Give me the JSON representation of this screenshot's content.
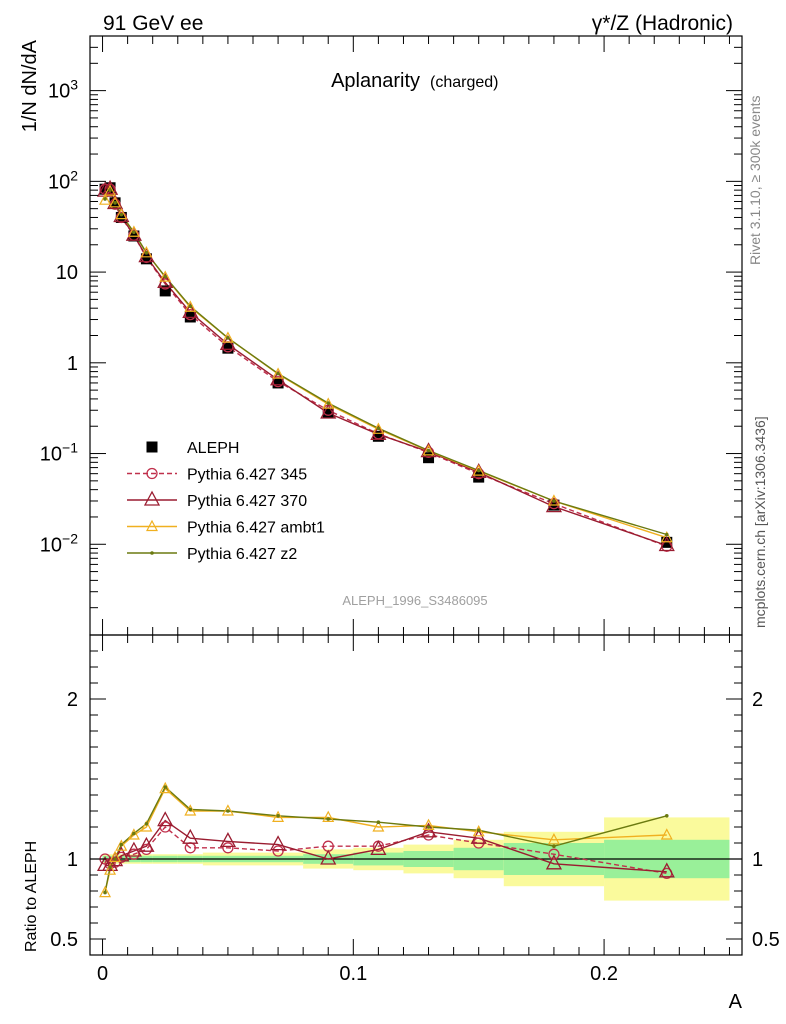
{
  "header": {
    "left": "91 GeV ee",
    "right": "γ*/Z (Hadronic)"
  },
  "side_labels": {
    "rivet": "Rivet 3.1.10, ≥ 300k events",
    "mcplots": "mcplots.cern.ch [arXiv:1306.3436]"
  },
  "watermark": "ALEPH_1996_S3486095",
  "colors": {
    "data": "#000000",
    "p345": "#c0304c",
    "p370": "#9a1c30",
    "ambt1": "#f0b020",
    "z2": "#6b7a10",
    "band_inner": "#99f099",
    "band_outer": "#fafa9c"
  },
  "chart_data": [
    {
      "type": "line",
      "title": "Aplanarity",
      "title_suffix": "(charged)",
      "ylabel": "1/N dN/dA",
      "yscale": "log",
      "ylim": [
        0.001,
        4000
      ],
      "xlim": [
        -0.005,
        0.255
      ],
      "yticks": [
        {
          "v": 0.01,
          "base": "10",
          "exp": "−2"
        },
        {
          "v": 0.1,
          "base": "10",
          "exp": "−1"
        },
        {
          "v": 1,
          "base": "1",
          "exp": ""
        },
        {
          "v": 10,
          "base": "10",
          "exp": ""
        },
        {
          "v": 100,
          "base": "10",
          "exp": "2"
        },
        {
          "v": 1000,
          "base": "10",
          "exp": "3"
        }
      ],
      "x": [
        0.001,
        0.003,
        0.005,
        0.0075,
        0.0125,
        0.0175,
        0.025,
        0.035,
        0.05,
        0.07,
        0.09,
        0.11,
        0.13,
        0.15,
        0.18,
        0.225
      ],
      "series": [
        {
          "name": "ALEPH",
          "key": "data",
          "style": "square",
          "values": [
            82,
            85,
            58,
            40,
            25,
            14,
            6.2,
            3.2,
            1.45,
            0.6,
            0.28,
            0.155,
            0.09,
            0.055,
            0.027,
            0.0105
          ]
        },
        {
          "name": "Pythia 6.427 345",
          "key": "p345",
          "style": "circle-dash",
          "values": [
            82,
            82,
            56,
            40,
            25.5,
            14.5,
            7.4,
            3.4,
            1.5,
            0.62,
            0.3,
            0.165,
            0.103,
            0.06,
            0.028,
            0.0095
          ]
        },
        {
          "name": "Pythia 6.427 370",
          "key": "p370",
          "style": "triangle-big",
          "values": [
            78,
            82,
            57,
            41,
            25.5,
            14.8,
            7.7,
            3.6,
            1.6,
            0.65,
            0.28,
            0.163,
            0.105,
            0.062,
            0.026,
            0.0097
          ]
        },
        {
          "name": "Pythia 6.427 ambt1",
          "key": "ambt1",
          "style": "triangle-small",
          "values": [
            62,
            78,
            58,
            43,
            27.5,
            16.3,
            8.8,
            4.1,
            1.87,
            0.75,
            0.35,
            0.185,
            0.107,
            0.064,
            0.03,
            0.0118
          ]
        },
        {
          "name": "Pythia 6.427 z2",
          "key": "z2",
          "style": "dot",
          "values": [
            64,
            80,
            58,
            43,
            27.5,
            16.3,
            8.9,
            4.2,
            1.88,
            0.76,
            0.36,
            0.19,
            0.108,
            0.065,
            0.03,
            0.0128
          ]
        }
      ]
    },
    {
      "type": "line",
      "ylabel": "Ratio to ALEPH",
      "xlabel": "A",
      "ylim": [
        0.4,
        2.4
      ],
      "yticks": [
        {
          "v": 0.5,
          "label": "0.5"
        },
        {
          "v": 1,
          "label": "1"
        },
        {
          "v": 2,
          "label": "2"
        }
      ],
      "xticks": [
        {
          "v": 0,
          "label": "0"
        },
        {
          "v": 0.1,
          "label": "0.1"
        },
        {
          "v": 0.2,
          "label": "0.2"
        }
      ],
      "x": [
        0.001,
        0.003,
        0.005,
        0.0075,
        0.0125,
        0.0175,
        0.025,
        0.035,
        0.05,
        0.07,
        0.09,
        0.11,
        0.13,
        0.15,
        0.18,
        0.225
      ],
      "bins": [
        [
          0,
          0.002
        ],
        [
          0.002,
          0.004
        ],
        [
          0.004,
          0.006
        ],
        [
          0.006,
          0.01
        ],
        [
          0.01,
          0.015
        ],
        [
          0.015,
          0.02
        ],
        [
          0.02,
          0.03
        ],
        [
          0.03,
          0.04
        ],
        [
          0.04,
          0.06
        ],
        [
          0.06,
          0.08
        ],
        [
          0.08,
          0.1
        ],
        [
          0.1,
          0.12
        ],
        [
          0.12,
          0.14
        ],
        [
          0.14,
          0.16
        ],
        [
          0.16,
          0.2
        ],
        [
          0.2,
          0.25
        ]
      ],
      "band_inner": [
        0.02,
        0.02,
        0.02,
        0.02,
        0.02,
        0.02,
        0.02,
        0.02,
        0.02,
        0.02,
        0.03,
        0.04,
        0.05,
        0.07,
        0.1,
        0.12
      ],
      "band_outer": [
        0.03,
        0.03,
        0.03,
        0.03,
        0.03,
        0.03,
        0.03,
        0.03,
        0.04,
        0.04,
        0.06,
        0.07,
        0.09,
        0.12,
        0.17,
        0.26
      ],
      "series": [
        {
          "name": "Pythia 6.427 345",
          "key": "p345",
          "style": "circle-dash",
          "values": [
            1.0,
            0.97,
            0.98,
            1.01,
            1.03,
            1.06,
            1.2,
            1.07,
            1.07,
            1.05,
            1.08,
            1.08,
            1.15,
            1.1,
            1.03,
            0.91
          ]
        },
        {
          "name": "Pythia 6.427 370",
          "key": "p370",
          "style": "triangle-big",
          "values": [
            0.96,
            0.96,
            0.99,
            1.02,
            1.05,
            1.08,
            1.24,
            1.13,
            1.11,
            1.09,
            1.0,
            1.06,
            1.17,
            1.13,
            0.97,
            0.92
          ]
        },
        {
          "name": "Pythia 6.427 ambt1",
          "key": "ambt1",
          "style": "triangle-small",
          "values": [
            0.79,
            0.93,
            1.01,
            1.08,
            1.15,
            1.2,
            1.44,
            1.3,
            1.3,
            1.26,
            1.26,
            1.2,
            1.21,
            1.17,
            1.12,
            1.15
          ]
        },
        {
          "name": "Pythia 6.427 z2",
          "key": "z2",
          "style": "dot",
          "values": [
            0.79,
            0.95,
            1.0,
            1.09,
            1.16,
            1.22,
            1.45,
            1.31,
            1.3,
            1.27,
            1.25,
            1.23,
            1.2,
            1.18,
            1.08,
            1.27
          ]
        }
      ]
    }
  ]
}
